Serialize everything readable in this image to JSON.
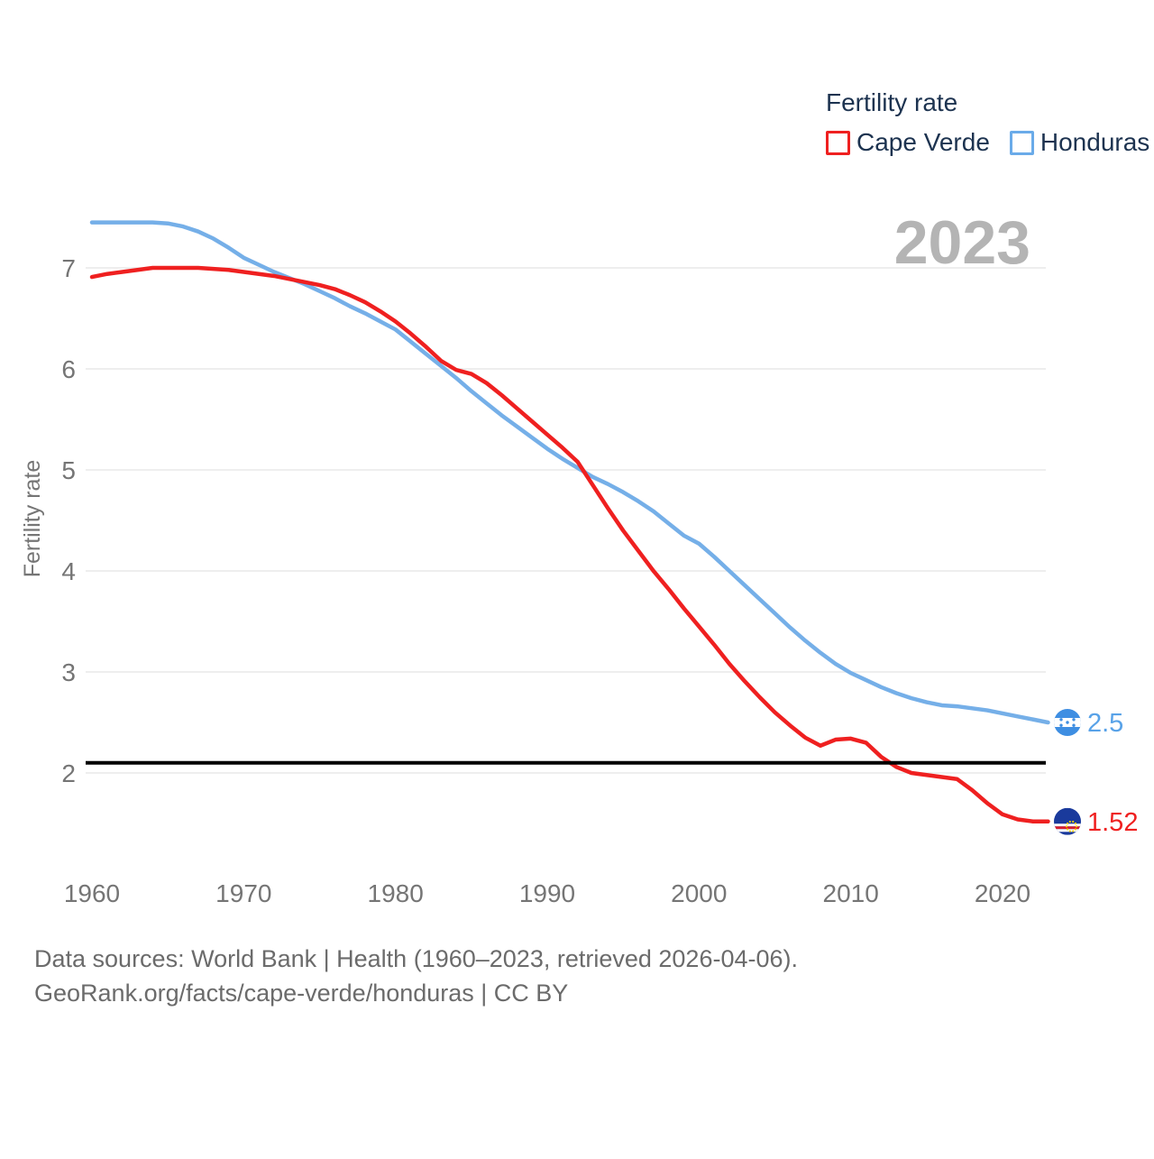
{
  "legend": {
    "title": "Fertility rate",
    "items": [
      {
        "label": "Cape Verde",
        "color": "#ef2020"
      },
      {
        "label": "Honduras",
        "color": "#6aabe9"
      }
    ]
  },
  "watermark_year": "2023",
  "footer": {
    "line1": "Data sources: World Bank | Health (1960–2023, retrieved 2026-04-06).",
    "line2": "GeoRank.org/facts/cape-verde/honduras | CC BY"
  },
  "chart_data": {
    "type": "line",
    "title": "Fertility rate",
    "ylabel": "Fertility rate",
    "xlim": [
      1960,
      2023
    ],
    "ylim": [
      1.3,
      7.7
    ],
    "x_ticks": [
      1960,
      1970,
      1980,
      1990,
      2000,
      2010,
      2020
    ],
    "y_ticks": [
      2,
      3,
      4,
      5,
      6,
      7
    ],
    "grid": true,
    "replacement_level": 2.1,
    "replacement_line_color": "#000000",
    "x": [
      1960,
      1961,
      1962,
      1963,
      1964,
      1965,
      1966,
      1967,
      1968,
      1969,
      1970,
      1971,
      1972,
      1973,
      1974,
      1975,
      1976,
      1977,
      1978,
      1979,
      1980,
      1981,
      1982,
      1983,
      1984,
      1985,
      1986,
      1987,
      1988,
      1989,
      1990,
      1991,
      1992,
      1993,
      1994,
      1995,
      1996,
      1997,
      1998,
      1999,
      2000,
      2001,
      2002,
      2003,
      2004,
      2005,
      2006,
      2007,
      2008,
      2009,
      2010,
      2011,
      2012,
      2013,
      2014,
      2015,
      2016,
      2017,
      2018,
      2019,
      2020,
      2021,
      2022,
      2023
    ],
    "series": [
      {
        "name": "Honduras",
        "color": "#75afe8",
        "values": [
          7.45,
          7.45,
          7.45,
          7.45,
          7.45,
          7.44,
          7.41,
          7.36,
          7.29,
          7.2,
          7.1,
          7.03,
          6.96,
          6.9,
          6.84,
          6.77,
          6.7,
          6.62,
          6.55,
          6.47,
          6.39,
          6.27,
          6.15,
          6.03,
          5.91,
          5.78,
          5.66,
          5.54,
          5.43,
          5.32,
          5.21,
          5.11,
          5.02,
          4.93,
          4.86,
          4.78,
          4.69,
          4.59,
          4.47,
          4.35,
          4.27,
          4.14,
          4.0,
          3.86,
          3.72,
          3.58,
          3.44,
          3.31,
          3.19,
          3.08,
          2.99,
          2.92,
          2.85,
          2.79,
          2.74,
          2.7,
          2.67,
          2.66,
          2.64,
          2.62,
          2.59,
          2.56,
          2.53,
          2.5
        ]
      },
      {
        "name": "Cape Verde",
        "color": "#ef2020",
        "values": [
          6.91,
          6.94,
          6.96,
          6.98,
          7.0,
          7.0,
          7.0,
          7.0,
          6.99,
          6.98,
          6.96,
          6.94,
          6.92,
          6.89,
          6.86,
          6.83,
          6.79,
          6.73,
          6.66,
          6.57,
          6.47,
          6.35,
          6.22,
          6.08,
          5.99,
          5.95,
          5.86,
          5.74,
          5.61,
          5.48,
          5.35,
          5.22,
          5.08,
          4.85,
          4.62,
          4.4,
          4.2,
          4.0,
          3.82,
          3.63,
          3.45,
          3.27,
          3.08,
          2.91,
          2.75,
          2.6,
          2.47,
          2.35,
          2.27,
          2.33,
          2.34,
          2.3,
          2.16,
          2.06,
          2.0,
          1.98,
          1.96,
          1.94,
          1.83,
          1.7,
          1.59,
          1.54,
          1.52,
          1.52
        ]
      }
    ],
    "end_labels": [
      {
        "series": "Honduras",
        "value": "2.5",
        "text_color": "#58a2e8"
      },
      {
        "series": "Cape Verde",
        "value": "1.52",
        "text_color": "#ef2020"
      }
    ],
    "legend_position": "top-right"
  }
}
